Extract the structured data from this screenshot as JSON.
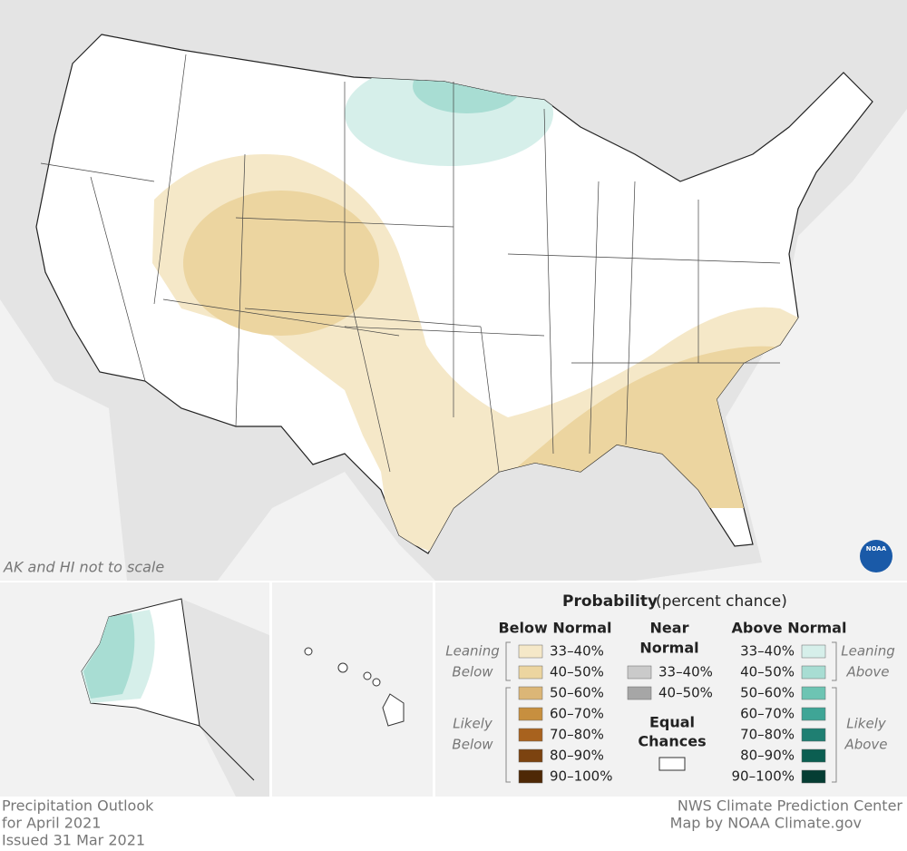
{
  "map": {
    "note": "AK and HI not to scale",
    "logo": "NOAA"
  },
  "legend": {
    "title": "Probability",
    "subtitle": "(percent chance)",
    "below": {
      "heading": "Below Normal",
      "leaning": [
        "Leaning",
        "Below"
      ],
      "likely": [
        "Likely",
        "Below"
      ],
      "items": [
        {
          "label": "33–40%",
          "color": "#f5e8c8"
        },
        {
          "label": "40–50%",
          "color": "#ecd5a0"
        },
        {
          "label": "50–60%",
          "color": "#dbb677"
        },
        {
          "label": "60–70%",
          "color": "#c78f3f"
        },
        {
          "label": "70–80%",
          "color": "#a8621e"
        },
        {
          "label": "80–90%",
          "color": "#7c4310"
        },
        {
          "label": "90–100%",
          "color": "#4e2806"
        }
      ]
    },
    "near": {
      "heading": [
        "Near",
        "Normal"
      ],
      "items": [
        {
          "label": "33–40%",
          "color": "#cacaca"
        },
        {
          "label": "40–50%",
          "color": "#a6a6a6"
        }
      ],
      "equal": [
        "Equal",
        "Chances"
      ]
    },
    "above": {
      "heading": "Above Normal",
      "leaning": [
        "Leaning",
        "Above"
      ],
      "likely": [
        "Likely",
        "Above"
      ],
      "items": [
        {
          "label": "33–40%",
          "color": "#d6efea"
        },
        {
          "label": "40–50%",
          "color": "#a8ddd3"
        },
        {
          "label": "50–60%",
          "color": "#6dc4b3"
        },
        {
          "label": "60–70%",
          "color": "#3fa596"
        },
        {
          "label": "70–80%",
          "color": "#1f7f72"
        },
        {
          "label": "80–90%",
          "color": "#0b5e51"
        },
        {
          "label": "90–100%",
          "color": "#053d33"
        }
      ]
    }
  },
  "footer": {
    "left": [
      "Precipitation Outlook",
      "for April 2021",
      "Issued 31 Mar 2021"
    ],
    "right": [
      "NWS Climate Prediction Center",
      "Map by NOAA Climate.gov"
    ]
  }
}
